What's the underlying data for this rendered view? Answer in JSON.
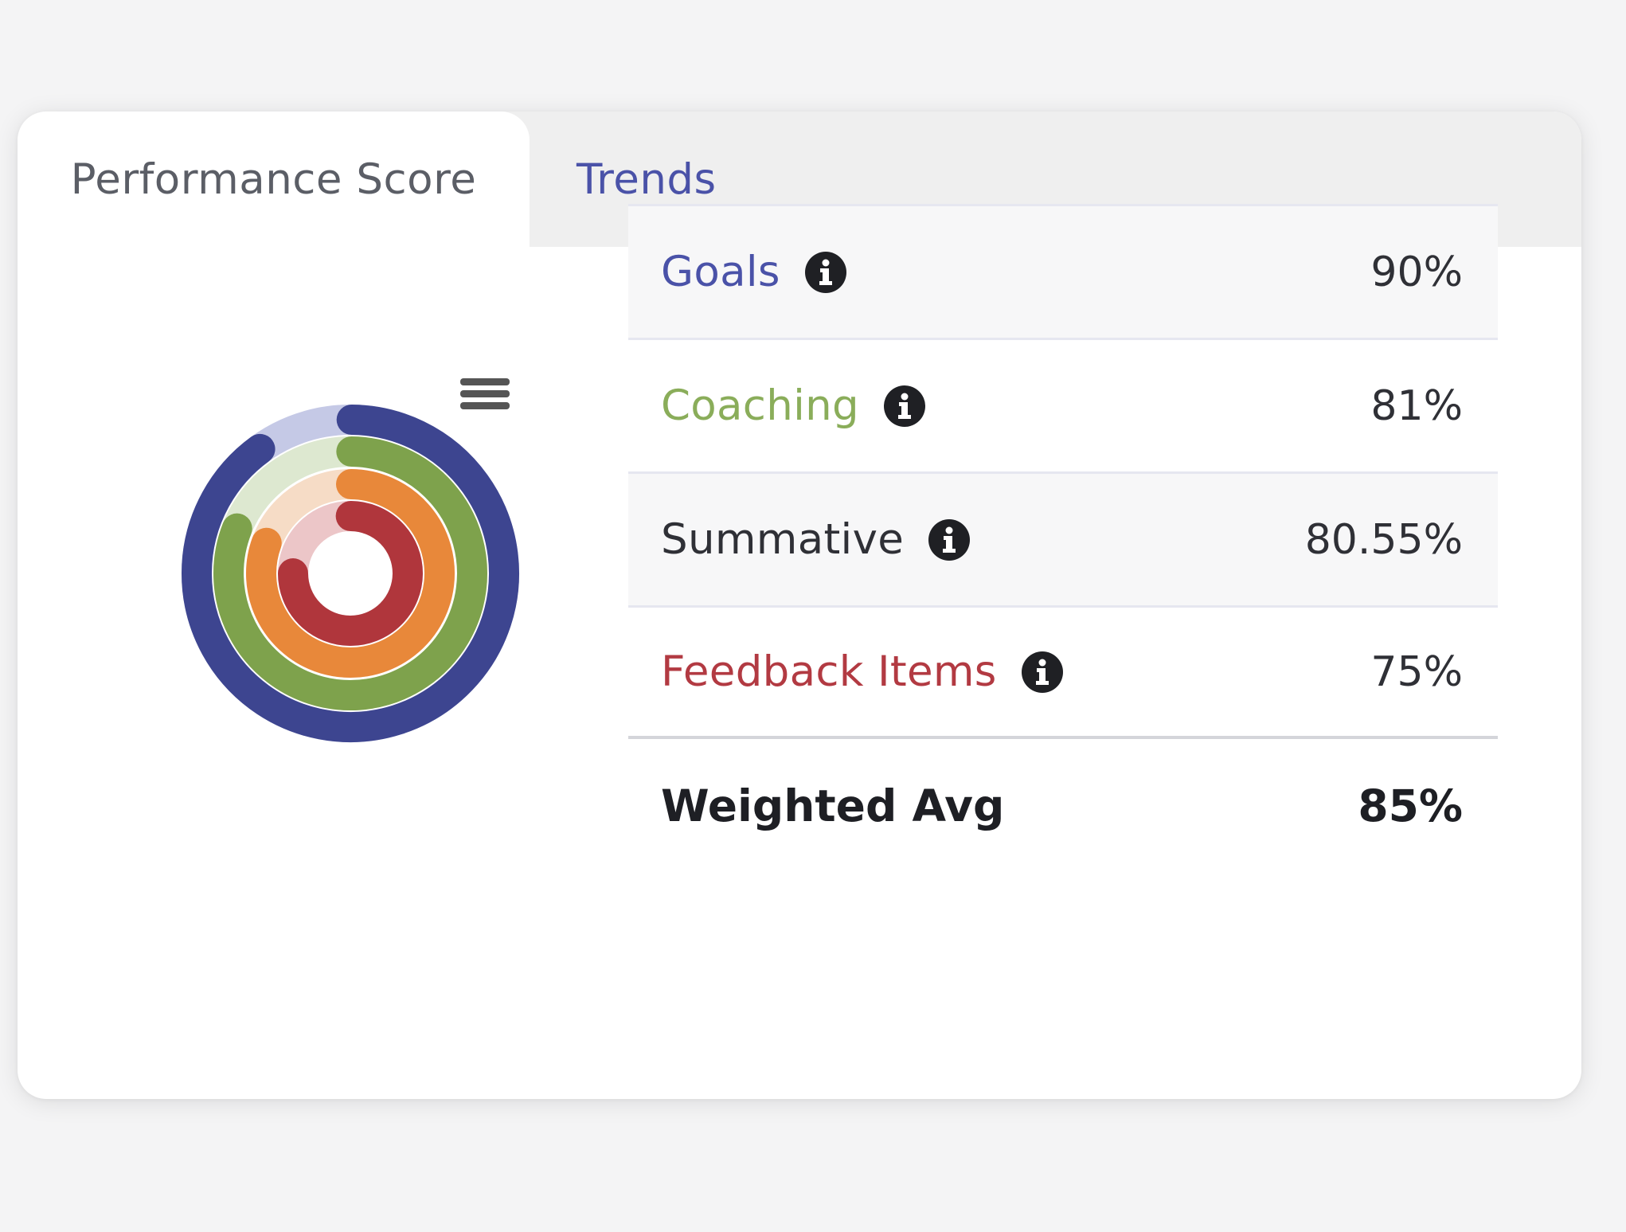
{
  "tabs": [
    {
      "label": "Performance Score",
      "active": true
    },
    {
      "label": "Trends",
      "active": false
    }
  ],
  "colors": {
    "goals": "#3d4590",
    "coaching": "#7ea24c",
    "summative": "#e8883a",
    "feedback": "#b0363c"
  },
  "chart_data": {
    "type": "radialBar",
    "series": [
      {
        "name": "Goals",
        "value": 90,
        "color": "#3d4590",
        "track": "#c5c9e6"
      },
      {
        "name": "Coaching",
        "value": 81,
        "color": "#7ea24c",
        "track": "#dde8d0"
      },
      {
        "name": "Summative",
        "value": 80.55,
        "color": "#e8883a",
        "track": "#f6dcc6"
      },
      {
        "name": "Feedback Items",
        "value": 75,
        "color": "#b0363c",
        "track": "#ecc6c8"
      }
    ],
    "max": 100
  },
  "chart_menu_icon": "hamburger-menu-icon",
  "metrics": [
    {
      "label": "Goals",
      "value": "90%",
      "color": "#4a52a8"
    },
    {
      "label": "Coaching",
      "value": "81%",
      "color": "#8aad5a"
    },
    {
      "label": "Summative",
      "value": "80.55%",
      "color": "#2f3036"
    },
    {
      "label": "Feedback Items",
      "value": "75%",
      "color": "#b23a42"
    }
  ],
  "info_icon": "info-circle-icon",
  "total": {
    "label": "Weighted Avg",
    "value": "85%"
  }
}
